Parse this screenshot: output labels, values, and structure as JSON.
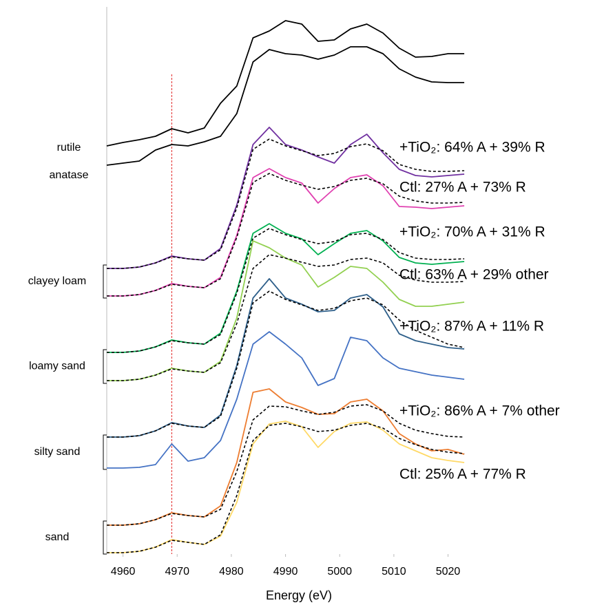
{
  "chart_data": {
    "type": "line",
    "xlabel": "Energy (eV)",
    "x": [
      4957,
      4960,
      4963,
      4966,
      4969,
      4972,
      4975,
      4978,
      4981,
      4984,
      4987,
      4990,
      4993,
      4996,
      4999,
      5002,
      5005,
      5008,
      5011,
      5014,
      5017,
      5020,
      5023
    ],
    "xlim": [
      4957,
      5024
    ],
    "xticks": [
      4960,
      4970,
      4980,
      4990,
      5000,
      5010,
      5020
    ],
    "ylim": [
      0,
      79.5
    ],
    "reference_line": {
      "x": 4969,
      "color": "#e02020"
    },
    "group_labels": [
      "clayey loam",
      "loamy sand",
      "silty sand",
      "sand"
    ],
    "series": [
      {
        "name": "rutile",
        "color": "#000000",
        "values": [
          59.3,
          59.8,
          60.2,
          60.7,
          61.8,
          61.2,
          61.9,
          65.5,
          68.0,
          75.0,
          76.0,
          77.5,
          77.0,
          74.5,
          74.7,
          76.3,
          77.0,
          75.7,
          73.5,
          72.2,
          72.3,
          72.7,
          72.7
        ]
      },
      {
        "name": "anatase",
        "color": "#000000",
        "values": [
          56.5,
          56.8,
          57.1,
          58.7,
          59.5,
          59.3,
          59.9,
          60.7,
          64.0,
          71.5,
          73.3,
          72.7,
          72.5,
          71.9,
          72.5,
          73.7,
          73.7,
          72.7,
          70.5,
          69.3,
          68.6,
          68.5,
          68.5
        ]
      },
      {
        "name": "+TiO₂: 64% A + 39% R",
        "color": "#7030a0",
        "values": [
          41.5,
          41.5,
          41.7,
          42.3,
          43.3,
          42.9,
          42.7,
          44.4,
          50.7,
          59.5,
          62.0,
          59.5,
          58.7,
          57.7,
          56.8,
          59.5,
          61.0,
          58.3,
          55.9,
          55.0,
          54.8,
          55.0,
          55.2
        ]
      },
      {
        "color": "#000000",
        "dashed": true,
        "values": [
          41.5,
          41.5,
          41.7,
          42.3,
          43.2,
          42.9,
          42.7,
          44.2,
          50.3,
          58.8,
          60.3,
          59.3,
          58.6,
          57.9,
          58.2,
          59.2,
          59.6,
          58.6,
          56.6,
          55.9,
          55.6,
          55.6,
          55.7
        ]
      },
      {
        "name": "Ctl: 27% A + 73% R",
        "color": "#e040b0",
        "values": [
          37.5,
          37.5,
          37.7,
          38.3,
          39.3,
          38.9,
          38.7,
          40.2,
          46.3,
          54.7,
          56.0,
          54.7,
          53.9,
          51.0,
          53.1,
          54.7,
          55.1,
          53.5,
          50.5,
          50.4,
          50.2,
          50.4,
          50.6
        ]
      },
      {
        "color": "#000000",
        "dashed": true,
        "values": [
          37.5,
          37.5,
          37.7,
          38.3,
          39.2,
          38.9,
          38.7,
          40.0,
          46.0,
          54.0,
          55.3,
          54.3,
          53.6,
          53.0,
          53.4,
          54.3,
          54.6,
          53.8,
          52.0,
          51.3,
          51.0,
          51.0,
          51.1
        ]
      },
      {
        "name": "+TiO₂: 70% A + 31% R",
        "color": "#00b050",
        "values": [
          29.3,
          29.3,
          29.5,
          30.1,
          31.1,
          30.7,
          30.5,
          32.1,
          38.2,
          46.6,
          48.0,
          46.6,
          45.8,
          43.5,
          45.1,
          46.6,
          47.0,
          45.5,
          43.1,
          42.3,
          42.1,
          42.3,
          42.5
        ]
      },
      {
        "color": "#000000",
        "dashed": true,
        "values": [
          29.3,
          29.3,
          29.5,
          30.1,
          31.0,
          30.7,
          30.5,
          31.9,
          37.9,
          45.9,
          47.3,
          46.4,
          45.7,
          45.1,
          45.4,
          46.4,
          46.6,
          45.7,
          43.8,
          43.0,
          42.8,
          42.8,
          42.9
        ]
      },
      {
        "name": "Ctl: 63% A + 29% other",
        "color": "#92d050",
        "values": [
          25.2,
          25.2,
          25.4,
          26.0,
          27.0,
          26.6,
          26.4,
          28.0,
          34.3,
          45.5,
          44.5,
          43.0,
          42.0,
          38.8,
          40.2,
          41.8,
          41.5,
          39.5,
          37.0,
          36.0,
          36.0,
          36.3,
          36.6
        ]
      },
      {
        "color": "#000000",
        "dashed": true,
        "values": [
          25.2,
          25.2,
          25.4,
          26.0,
          26.9,
          26.6,
          26.4,
          27.8,
          33.5,
          41.5,
          43.5,
          43.0,
          42.4,
          41.8,
          42.0,
          42.8,
          43.0,
          42.3,
          40.5,
          39.8,
          39.5,
          39.5,
          39.6
        ]
      },
      {
        "name": "+TiO₂: 87% A + 11% R",
        "color": "#2e5f8a",
        "values": [
          17.0,
          17.0,
          17.2,
          17.9,
          19.1,
          18.6,
          18.4,
          20.2,
          27.4,
          37.2,
          40.0,
          37.2,
          36.3,
          35.2,
          35.4,
          37.2,
          37.7,
          35.9,
          32.0,
          31.0,
          30.5,
          30.0,
          29.8
        ]
      },
      {
        "color": "#000000",
        "dashed": true,
        "values": [
          17.0,
          17.0,
          17.2,
          17.9,
          19.0,
          18.6,
          18.4,
          20.0,
          27.0,
          36.5,
          38.2,
          37.0,
          36.2,
          35.4,
          35.7,
          36.8,
          37.2,
          36.2,
          34.0,
          32.5,
          31.5,
          30.5,
          30.0
        ]
      },
      {
        "color": "#4472c4",
        "values": [
          12.5,
          12.5,
          12.6,
          13.0,
          16.0,
          13.5,
          14.0,
          16.5,
          22.5,
          30.5,
          32.3,
          30.5,
          28.5,
          24.5,
          25.5,
          31.5,
          31.0,
          28.5,
          27.0,
          26.5,
          26.0,
          25.7,
          25.4
        ]
      },
      {
        "name": "+TiO₂: 86% A + 7% other",
        "color": "#ed7d31",
        "values": [
          4.2,
          4.2,
          4.4,
          5.0,
          6.0,
          5.6,
          5.4,
          7.0,
          13.3,
          23.5,
          24.0,
          22.1,
          21.3,
          20.3,
          20.4,
          22.1,
          22.5,
          20.8,
          17.5,
          16.0,
          15.0,
          15.2,
          14.5
        ]
      },
      {
        "color": "#000000",
        "dashed": true,
        "values": [
          4.2,
          4.2,
          4.4,
          5.0,
          5.9,
          5.6,
          5.4,
          6.5,
          12.0,
          19.5,
          21.5,
          21.4,
          20.8,
          20.3,
          20.6,
          21.5,
          21.7,
          20.8,
          19.0,
          18.0,
          17.5,
          17.1,
          17.0
        ]
      },
      {
        "name": "Ctl: 25% A + 77% R",
        "color": "#ffd966",
        "values": [
          0.2,
          0.2,
          0.4,
          1.0,
          2.1,
          1.7,
          1.4,
          2.6,
          7.5,
          16.0,
          18.9,
          19.3,
          18.5,
          15.5,
          17.8,
          19.0,
          19.2,
          18.0,
          16.0,
          15.0,
          14.0,
          13.6,
          13.3
        ]
      },
      {
        "color": "#000000",
        "dashed": true,
        "values": [
          0.2,
          0.2,
          0.4,
          1.0,
          2.0,
          1.7,
          1.4,
          2.8,
          8.5,
          16.5,
          18.7,
          19.0,
          18.5,
          17.8,
          18.0,
          18.7,
          19.0,
          18.3,
          16.8,
          15.9,
          15.2,
          14.8,
          14.6
        ]
      }
    ]
  }
}
